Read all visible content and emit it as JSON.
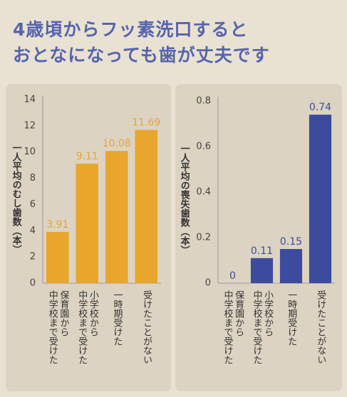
{
  "title": "4歳頃からフッ素洗口すると\nおとなになっても歯が丈夫です",
  "chart_data": [
    {
      "type": "bar",
      "ylabel": "一人平均のむし歯数（本）",
      "categories": [
        "保育園から\n中学校まで受けた",
        "小学校から\n中学校まで受けた",
        "一時期受けた",
        "受けたことがない"
      ],
      "values": [
        3.91,
        9.11,
        10.08,
        11.69
      ],
      "color": "#e9a62c",
      "ylim": [
        0,
        14
      ],
      "yticks": [
        0,
        2,
        4,
        6,
        8,
        10,
        12,
        14
      ],
      "grid": false
    },
    {
      "type": "bar",
      "ylabel": "一人平均の喪失歯数（本）",
      "categories": [
        "保育園から\n中学校まで受けた",
        "小学校から\n中学校まで受けた",
        "一時期受けた",
        "受けたことがない"
      ],
      "values": [
        0,
        0.11,
        0.15,
        0.74
      ],
      "color": "#3c4b9e",
      "ylim": [
        0,
        0.8
      ],
      "yticks": [
        0,
        0.2,
        0.4,
        0.6,
        0.8
      ],
      "grid": false
    }
  ]
}
